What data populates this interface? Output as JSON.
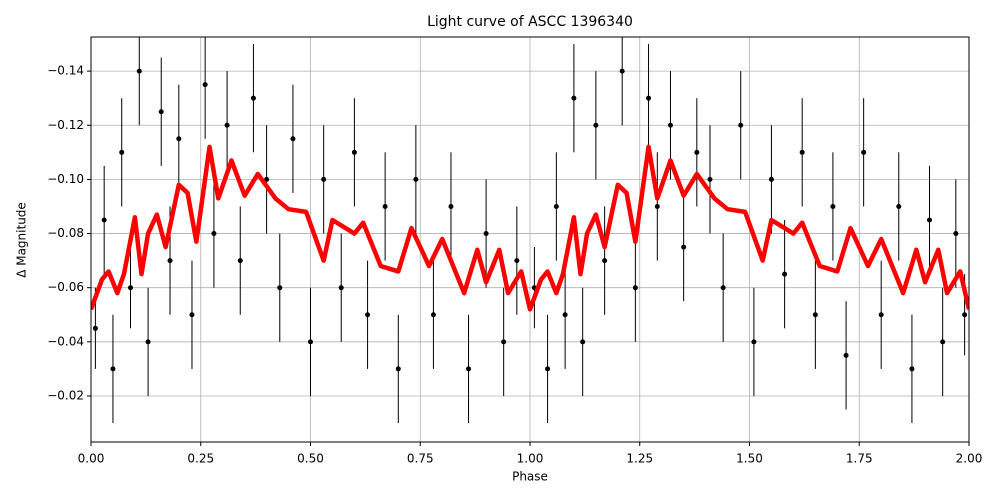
{
  "chart_data": {
    "type": "scatter",
    "title": "Light curve of ASCC 1396340",
    "x_label": "Phase",
    "y_label": "Δ Magnitude",
    "xlim": [
      0,
      2
    ],
    "ylim": [
      -0.003,
      -0.1526
    ],
    "xticks": [
      {
        "value": 0,
        "label": "0.00"
      },
      {
        "value": 0.25,
        "label": "0.25"
      },
      {
        "value": 0.5,
        "label": "0.50"
      },
      {
        "value": 0.75,
        "label": "0.75"
      },
      {
        "value": 1,
        "label": "1.00"
      },
      {
        "value": 1.25,
        "label": "1.25"
      },
      {
        "value": 1.5,
        "label": "1.50"
      },
      {
        "value": 1.75,
        "label": "1.75"
      },
      {
        "value": 2,
        "label": "2.00"
      }
    ],
    "yticks": [
      {
        "value": -0.14,
        "label": "−0.14"
      },
      {
        "value": -0.12,
        "label": "−0.12"
      },
      {
        "value": -0.1,
        "label": "−0.10"
      },
      {
        "value": -0.08,
        "label": "−0.08"
      },
      {
        "value": -0.06,
        "label": "−0.06"
      },
      {
        "value": -0.04,
        "label": "−0.04"
      },
      {
        "value": -0.02,
        "label": "−0.02"
      }
    ],
    "grid": true,
    "series": [
      {
        "kind": "errorbar",
        "color": "#000000",
        "x": [
          0.01,
          0.03,
          0.05,
          0.07,
          0.09,
          0.11,
          0.13,
          0.16,
          0.18,
          0.2,
          0.23,
          0.26,
          0.28,
          0.31,
          0.34,
          0.37,
          0.4,
          0.43,
          0.46,
          0.5,
          0.53,
          0.57,
          0.6,
          0.63,
          0.67,
          0.7,
          0.74,
          0.78,
          0.82,
          0.86,
          0.9,
          0.94,
          0.97,
          1.01,
          1.04,
          1.06,
          1.08,
          1.1,
          1.12,
          1.15,
          1.17,
          1.21,
          1.24,
          1.27,
          1.29,
          1.32,
          1.35,
          1.38,
          1.41,
          1.44,
          1.48,
          1.51,
          1.55,
          1.58,
          1.62,
          1.65,
          1.69,
          1.72,
          1.76,
          1.8,
          1.84,
          1.87,
          1.91,
          1.94,
          1.97,
          1.99
        ],
        "y": [
          -0.045,
          -0.085,
          -0.03,
          -0.11,
          -0.06,
          -0.14,
          -0.04,
          -0.125,
          -0.07,
          -0.115,
          -0.05,
          -0.135,
          -0.08,
          -0.12,
          -0.07,
          -0.13,
          -0.1,
          -0.06,
          -0.115,
          -0.04,
          -0.1,
          -0.06,
          -0.11,
          -0.05,
          -0.09,
          -0.03,
          -0.1,
          -0.05,
          -0.09,
          -0.03,
          -0.08,
          -0.04,
          -0.07,
          -0.06,
          -0.03,
          -0.09,
          -0.05,
          -0.13,
          -0.04,
          -0.12,
          -0.07,
          -0.14,
          -0.06,
          -0.13,
          -0.09,
          -0.12,
          -0.075,
          -0.11,
          -0.1,
          -0.06,
          -0.12,
          -0.04,
          -0.1,
          -0.065,
          -0.11,
          -0.05,
          -0.09,
          -0.035,
          -0.11,
          -0.05,
          -0.09,
          -0.03,
          -0.085,
          -0.04,
          -0.08,
          -0.05
        ],
        "yerr": [
          0.015,
          0.02,
          0.02,
          0.02,
          0.015,
          0.02,
          0.02,
          0.02,
          0.02,
          0.02,
          0.02,
          0.02,
          0.02,
          0.02,
          0.02,
          0.02,
          0.02,
          0.02,
          0.02,
          0.02,
          0.02,
          0.02,
          0.02,
          0.02,
          0.02,
          0.02,
          0.02,
          0.02,
          0.02,
          0.02,
          0.02,
          0.02,
          0.02,
          0.015,
          0.02,
          0.02,
          0.02,
          0.02,
          0.02,
          0.02,
          0.02,
          0.02,
          0.02,
          0.02,
          0.02,
          0.02,
          0.02,
          0.02,
          0.02,
          0.02,
          0.02,
          0.02,
          0.02,
          0.02,
          0.02,
          0.02,
          0.02,
          0.02,
          0.02,
          0.02,
          0.02,
          0.02,
          0.02,
          0.02,
          0.02,
          0.015
        ]
      },
      {
        "kind": "line",
        "color": "#ff0000",
        "x": [
          0,
          0.025,
          0.04,
          0.06,
          0.075,
          0.1,
          0.115,
          0.13,
          0.15,
          0.17,
          0.2,
          0.22,
          0.24,
          0.27,
          0.29,
          0.32,
          0.35,
          0.38,
          0.42,
          0.45,
          0.49,
          0.53,
          0.55,
          0.6,
          0.62,
          0.66,
          0.7,
          0.73,
          0.77,
          0.8,
          0.83,
          0.85,
          0.88,
          0.9,
          0.93,
          0.95,
          0.98,
          1,
          1.025,
          1.04,
          1.06,
          1.075,
          1.1,
          1.115,
          1.13,
          1.15,
          1.17,
          1.2,
          1.22,
          1.24,
          1.27,
          1.29,
          1.32,
          1.35,
          1.38,
          1.42,
          1.45,
          1.49,
          1.53,
          1.55,
          1.6,
          1.62,
          1.66,
          1.7,
          1.73,
          1.77,
          1.8,
          1.83,
          1.85,
          1.88,
          1.9,
          1.93,
          1.95,
          1.98,
          2
        ],
        "y": [
          -0.052,
          -0.063,
          -0.066,
          -0.058,
          -0.065,
          -0.086,
          -0.065,
          -0.08,
          -0.087,
          -0.075,
          -0.098,
          -0.095,
          -0.077,
          -0.112,
          -0.093,
          -0.107,
          -0.094,
          -0.102,
          -0.093,
          -0.089,
          -0.088,
          -0.07,
          -0.085,
          -0.08,
          -0.084,
          -0.068,
          -0.066,
          -0.082,
          -0.068,
          -0.078,
          -0.066,
          -0.058,
          -0.074,
          -0.062,
          -0.074,
          -0.058,
          -0.066,
          -0.052,
          -0.063,
          -0.066,
          -0.058,
          -0.065,
          -0.086,
          -0.065,
          -0.08,
          -0.087,
          -0.075,
          -0.098,
          -0.095,
          -0.077,
          -0.112,
          -0.093,
          -0.107,
          -0.094,
          -0.102,
          -0.093,
          -0.089,
          -0.088,
          -0.07,
          -0.085,
          -0.08,
          -0.084,
          -0.068,
          -0.066,
          -0.082,
          -0.068,
          -0.078,
          -0.066,
          -0.058,
          -0.074,
          -0.062,
          -0.074,
          -0.058,
          -0.066,
          -0.052
        ]
      }
    ]
  }
}
